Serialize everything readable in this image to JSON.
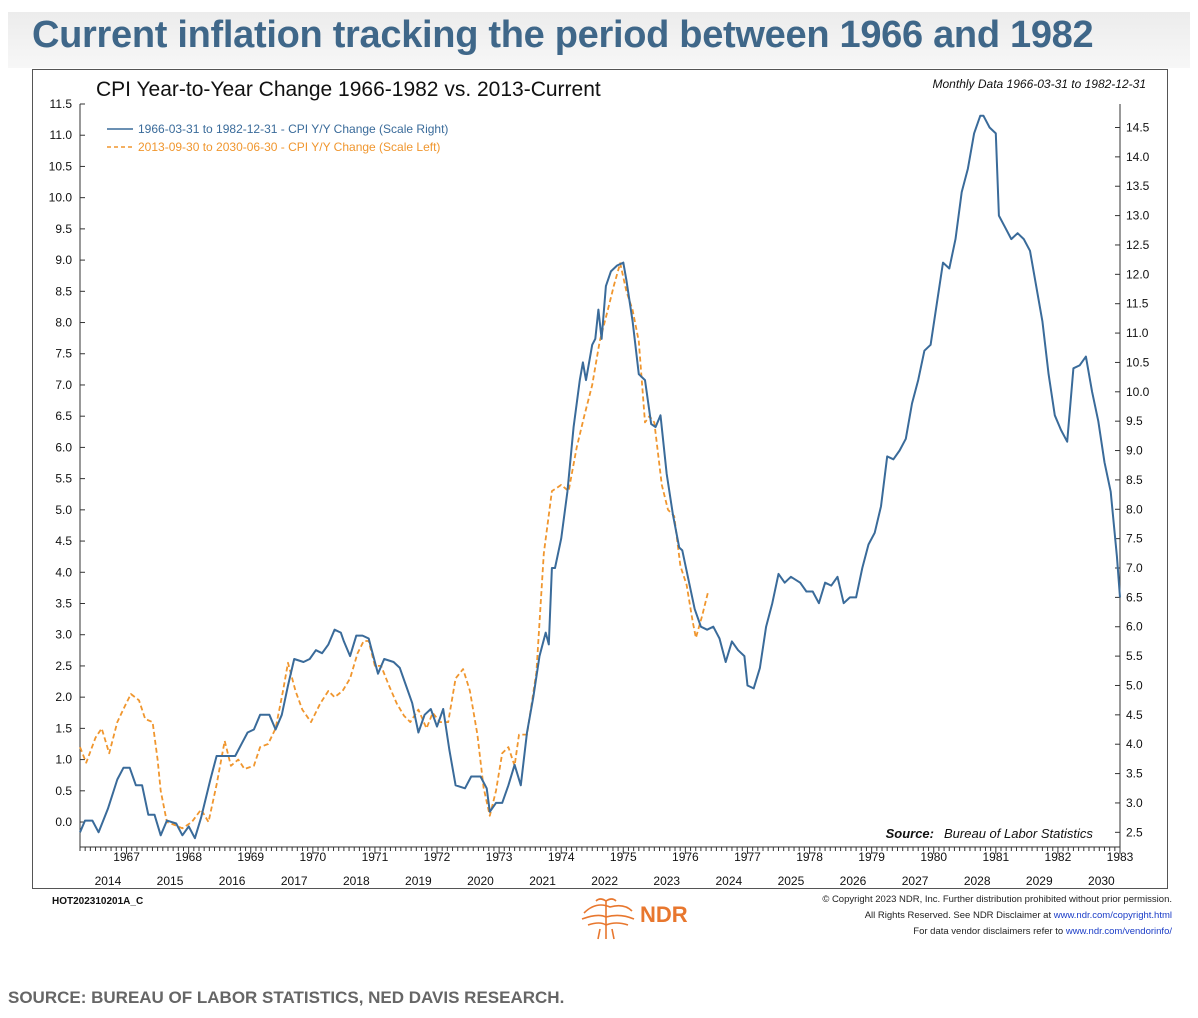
{
  "page": {
    "headline": "Current inflation tracking the period between 1966 and 1982",
    "source_caption": "SOURCE: BUREAU OF LABOR STATISTICS, NED DAVIS RESEARCH.",
    "chart_code": "HOT202310201A_C",
    "logo_text": "NDR",
    "copyright_line1": "© Copyright 2023 NDR, Inc. Further distribution prohibited without prior permission.",
    "copyright_line2_text": "All Rights Reserved. See NDR Disclaimer at ",
    "copyright_line2_link": "www.ndr.com/copyright.html",
    "copyright_line3_text": "For data vendor disclaimers refer to ",
    "copyright_line3_link": "www.ndr.com/vendorinfo/"
  },
  "chart_data": {
    "type": "line",
    "title": "CPI Year-to-Year Change 1966-1982 vs. 2013-Current",
    "note": "Monthly Data 1966-03-31 to 1982-12-31",
    "source_label": "Source:",
    "source_text": "Bureau of Labor Statistics",
    "legend_position": "top-left",
    "grid": false,
    "left_axis": {
      "min": -0.4,
      "max": 11.5,
      "ticks": [
        "0.0",
        "0.5",
        "1.0",
        "1.5",
        "2.0",
        "2.5",
        "3.0",
        "3.5",
        "4.0",
        "4.5",
        "5.0",
        "5.5",
        "6.0",
        "6.5",
        "7.0",
        "7.5",
        "8.0",
        "8.5",
        "9.0",
        "9.5",
        "10.0",
        "10.5",
        "11.0",
        "11.5"
      ]
    },
    "right_axis": {
      "min": 2.25,
      "max": 14.9,
      "ticks": [
        "2.5",
        "3.0",
        "3.5",
        "4.0",
        "4.5",
        "5.0",
        "5.5",
        "6.0",
        "6.5",
        "7.0",
        "7.5",
        "8.0",
        "8.5",
        "9.0",
        "9.5",
        "10.0",
        "10.5",
        "11.0",
        "11.5",
        "12.0",
        "12.5",
        "13.0",
        "13.5",
        "14.0",
        "14.5"
      ]
    },
    "top_axis": {
      "labels": [
        "1967",
        "1968",
        "1969",
        "1970",
        "1971",
        "1972",
        "1973",
        "1974",
        "1975",
        "1976",
        "1977",
        "1978",
        "1979",
        "1980",
        "1981",
        "1982",
        "1983"
      ],
      "first": 1967,
      "start": 1966.25,
      "end": 1983.0
    },
    "bottom_axis": {
      "labels": [
        "2014",
        "2015",
        "2016",
        "2017",
        "2018",
        "2019",
        "2020",
        "2021",
        "2022",
        "2023",
        "2024",
        "2025",
        "2026",
        "2027",
        "2028",
        "2029",
        "2030"
      ],
      "first": 2014
    },
    "series": [
      {
        "name": "1966-03-31 to 1982-12-31 - CPI Y/Y Change (Scale Right)",
        "axis": "right",
        "color": "#3a6b9a",
        "style": "solid",
        "points": [
          [
            1966.25,
            2.5
          ],
          [
            1966.33,
            2.7
          ],
          [
            1966.45,
            2.7
          ],
          [
            1966.55,
            2.5
          ],
          [
            1966.7,
            2.9
          ],
          [
            1966.85,
            3.4
          ],
          [
            1966.95,
            3.6
          ],
          [
            1967.05,
            3.6
          ],
          [
            1967.15,
            3.3
          ],
          [
            1967.25,
            3.3
          ],
          [
            1967.35,
            2.8
          ],
          [
            1967.45,
            2.8
          ],
          [
            1967.55,
            2.45
          ],
          [
            1967.65,
            2.7
          ],
          [
            1967.8,
            2.65
          ],
          [
            1967.9,
            2.45
          ],
          [
            1968.0,
            2.6
          ],
          [
            1968.1,
            2.4
          ],
          [
            1968.2,
            2.75
          ],
          [
            1968.35,
            3.4
          ],
          [
            1968.45,
            3.8
          ],
          [
            1968.6,
            3.8
          ],
          [
            1968.75,
            3.8
          ],
          [
            1968.85,
            4.0
          ],
          [
            1968.95,
            4.2
          ],
          [
            1969.05,
            4.25
          ],
          [
            1969.15,
            4.5
          ],
          [
            1969.3,
            4.5
          ],
          [
            1969.4,
            4.25
          ],
          [
            1969.5,
            4.5
          ],
          [
            1969.6,
            5.0
          ],
          [
            1969.7,
            5.45
          ],
          [
            1969.85,
            5.4
          ],
          [
            1969.95,
            5.45
          ],
          [
            1970.05,
            5.6
          ],
          [
            1970.15,
            5.55
          ],
          [
            1970.25,
            5.7
          ],
          [
            1970.35,
            5.95
          ],
          [
            1970.45,
            5.9
          ],
          [
            1970.5,
            5.75
          ],
          [
            1970.6,
            5.5
          ],
          [
            1970.7,
            5.85
          ],
          [
            1970.8,
            5.85
          ],
          [
            1970.9,
            5.8
          ],
          [
            1970.95,
            5.6
          ],
          [
            1971.05,
            5.2
          ],
          [
            1971.15,
            5.45
          ],
          [
            1971.3,
            5.4
          ],
          [
            1971.4,
            5.3
          ],
          [
            1971.5,
            5.0
          ],
          [
            1971.6,
            4.7
          ],
          [
            1971.7,
            4.2
          ],
          [
            1971.8,
            4.5
          ],
          [
            1971.9,
            4.6
          ],
          [
            1972.0,
            4.3
          ],
          [
            1972.1,
            4.6
          ],
          [
            1972.2,
            3.9
          ],
          [
            1972.3,
            3.3
          ],
          [
            1972.45,
            3.25
          ],
          [
            1972.55,
            3.45
          ],
          [
            1972.7,
            3.45
          ],
          [
            1972.8,
            3.25
          ],
          [
            1972.85,
            2.85
          ],
          [
            1972.95,
            3.0
          ],
          [
            1973.05,
            3.0
          ],
          [
            1973.15,
            3.3
          ],
          [
            1973.25,
            3.65
          ],
          [
            1973.35,
            3.3
          ],
          [
            1973.45,
            4.2
          ],
          [
            1973.55,
            4.8
          ],
          [
            1973.65,
            5.5
          ],
          [
            1973.75,
            5.9
          ],
          [
            1973.8,
            5.7
          ],
          [
            1973.85,
            7.0
          ],
          [
            1973.9,
            7.0
          ],
          [
            1974.0,
            7.5
          ],
          [
            1974.1,
            8.3
          ],
          [
            1974.2,
            9.4
          ],
          [
            1974.3,
            10.2
          ],
          [
            1974.35,
            10.5
          ],
          [
            1974.4,
            10.2
          ],
          [
            1974.5,
            10.8
          ],
          [
            1974.55,
            10.9
          ],
          [
            1974.6,
            11.4
          ],
          [
            1974.65,
            10.9
          ],
          [
            1974.72,
            11.8
          ],
          [
            1974.8,
            12.05
          ],
          [
            1974.9,
            12.15
          ],
          [
            1975.0,
            12.2
          ],
          [
            1975.05,
            11.9
          ],
          [
            1975.15,
            11.2
          ],
          [
            1975.25,
            10.3
          ],
          [
            1975.35,
            10.2
          ],
          [
            1975.45,
            9.45
          ],
          [
            1975.52,
            9.4
          ],
          [
            1975.6,
            9.6
          ],
          [
            1975.7,
            8.6
          ],
          [
            1975.8,
            7.9
          ],
          [
            1975.9,
            7.35
          ],
          [
            1975.95,
            7.3
          ],
          [
            1976.05,
            6.8
          ],
          [
            1976.15,
            6.3
          ],
          [
            1976.25,
            6.0
          ],
          [
            1976.35,
            5.95
          ],
          [
            1976.45,
            6.0
          ],
          [
            1976.55,
            5.8
          ],
          [
            1976.65,
            5.4
          ],
          [
            1976.75,
            5.75
          ],
          [
            1976.85,
            5.6
          ],
          [
            1976.95,
            5.5
          ],
          [
            1977.0,
            5.0
          ],
          [
            1977.1,
            4.95
          ],
          [
            1977.2,
            5.3
          ],
          [
            1977.3,
            6.0
          ],
          [
            1977.4,
            6.4
          ],
          [
            1977.5,
            6.9
          ],
          [
            1977.6,
            6.75
          ],
          [
            1977.7,
            6.85
          ],
          [
            1977.85,
            6.75
          ],
          [
            1977.95,
            6.6
          ],
          [
            1978.05,
            6.6
          ],
          [
            1978.15,
            6.4
          ],
          [
            1978.25,
            6.75
          ],
          [
            1978.35,
            6.7
          ],
          [
            1978.45,
            6.85
          ],
          [
            1978.55,
            6.4
          ],
          [
            1978.65,
            6.5
          ],
          [
            1978.75,
            6.5
          ],
          [
            1978.85,
            7.0
          ],
          [
            1978.95,
            7.4
          ],
          [
            1979.05,
            7.6
          ],
          [
            1979.15,
            8.05
          ],
          [
            1979.25,
            8.9
          ],
          [
            1979.35,
            8.85
          ],
          [
            1979.45,
            9.0
          ],
          [
            1979.55,
            9.2
          ],
          [
            1979.65,
            9.8
          ],
          [
            1979.75,
            10.2
          ],
          [
            1979.85,
            10.7
          ],
          [
            1979.95,
            10.8
          ],
          [
            1980.05,
            11.5
          ],
          [
            1980.15,
            12.2
          ],
          [
            1980.25,
            12.1
          ],
          [
            1980.35,
            12.6
          ],
          [
            1980.45,
            13.4
          ],
          [
            1980.55,
            13.8
          ],
          [
            1980.65,
            14.4
          ],
          [
            1980.75,
            14.7
          ],
          [
            1980.8,
            14.7
          ],
          [
            1980.9,
            14.5
          ],
          [
            1981.0,
            14.4
          ],
          [
            1981.05,
            13.0
          ],
          [
            1981.15,
            12.8
          ],
          [
            1981.25,
            12.6
          ],
          [
            1981.35,
            12.7
          ],
          [
            1981.45,
            12.6
          ],
          [
            1981.55,
            12.4
          ],
          [
            1981.65,
            11.8
          ],
          [
            1981.75,
            11.2
          ],
          [
            1981.85,
            10.3
          ],
          [
            1981.95,
            9.6
          ],
          [
            1982.05,
            9.35
          ],
          [
            1982.15,
            9.15
          ],
          [
            1982.25,
            10.4
          ],
          [
            1982.35,
            10.45
          ],
          [
            1982.45,
            10.6
          ],
          [
            1982.55,
            10.0
          ],
          [
            1982.65,
            9.5
          ],
          [
            1982.75,
            8.8
          ],
          [
            1982.85,
            8.3
          ],
          [
            1982.95,
            7.2
          ],
          [
            1983.0,
            6.5
          ]
        ]
      },
      {
        "name": "2013-09-30 to 2030-06-30 - CPI Y/Y Change (Scale Left)",
        "axis": "left",
        "color": "#f0962e",
        "style": "dashed",
        "points": [
          [
            1966.25,
            1.2
          ],
          [
            1966.35,
            0.95
          ],
          [
            1966.5,
            1.35
          ],
          [
            1966.6,
            1.5
          ],
          [
            1966.72,
            1.1
          ],
          [
            1966.85,
            1.6
          ],
          [
            1966.97,
            1.85
          ],
          [
            1967.07,
            2.05
          ],
          [
            1967.2,
            1.95
          ],
          [
            1967.3,
            1.65
          ],
          [
            1967.42,
            1.6
          ],
          [
            1967.5,
            1.0
          ],
          [
            1967.55,
            0.5
          ],
          [
            1967.65,
            0.0
          ],
          [
            1967.78,
            -0.05
          ],
          [
            1967.9,
            -0.1
          ],
          [
            1968.05,
            0.0
          ],
          [
            1968.2,
            0.2
          ],
          [
            1968.32,
            0.0
          ],
          [
            1968.45,
            0.6
          ],
          [
            1968.58,
            1.3
          ],
          [
            1968.68,
            0.9
          ],
          [
            1968.8,
            1.0
          ],
          [
            1968.9,
            0.85
          ],
          [
            1969.05,
            0.9
          ],
          [
            1969.15,
            1.2
          ],
          [
            1969.28,
            1.25
          ],
          [
            1969.4,
            1.5
          ],
          [
            1969.52,
            2.1
          ],
          [
            1969.6,
            2.55
          ],
          [
            1969.72,
            2.1
          ],
          [
            1969.83,
            1.8
          ],
          [
            1969.97,
            1.6
          ],
          [
            1970.12,
            1.9
          ],
          [
            1970.25,
            2.1
          ],
          [
            1970.35,
            2.0
          ],
          [
            1970.48,
            2.1
          ],
          [
            1970.6,
            2.3
          ],
          [
            1970.72,
            2.7
          ],
          [
            1970.82,
            2.9
          ],
          [
            1970.9,
            2.9
          ],
          [
            1971.0,
            2.5
          ],
          [
            1971.1,
            2.5
          ],
          [
            1971.22,
            2.2
          ],
          [
            1971.35,
            1.9
          ],
          [
            1971.47,
            1.7
          ],
          [
            1971.57,
            1.6
          ],
          [
            1971.7,
            1.8
          ],
          [
            1971.83,
            1.5
          ],
          [
            1971.93,
            1.75
          ],
          [
            1972.05,
            1.6
          ],
          [
            1972.18,
            1.6
          ],
          [
            1972.3,
            2.3
          ],
          [
            1972.42,
            2.45
          ],
          [
            1972.53,
            2.1
          ],
          [
            1972.65,
            1.4
          ],
          [
            1972.75,
            0.55
          ],
          [
            1972.85,
            0.1
          ],
          [
            1972.95,
            0.5
          ],
          [
            1973.05,
            1.1
          ],
          [
            1973.15,
            1.2
          ],
          [
            1973.25,
            0.9
          ],
          [
            1973.32,
            1.4
          ],
          [
            1973.45,
            1.4
          ],
          [
            1973.6,
            2.4
          ],
          [
            1973.72,
            4.3
          ],
          [
            1973.85,
            5.3
          ],
          [
            1974.0,
            5.4
          ],
          [
            1974.12,
            5.3
          ],
          [
            1974.25,
            6.0
          ],
          [
            1974.37,
            6.5
          ],
          [
            1974.5,
            7.0
          ],
          [
            1974.62,
            7.7
          ],
          [
            1974.75,
            8.2
          ],
          [
            1974.85,
            8.6
          ],
          [
            1974.95,
            8.95
          ],
          [
            1975.05,
            8.5
          ],
          [
            1975.15,
            8.2
          ],
          [
            1975.25,
            7.7
          ],
          [
            1975.35,
            6.4
          ],
          [
            1975.42,
            6.5
          ],
          [
            1975.5,
            6.4
          ],
          [
            1975.62,
            5.4
          ],
          [
            1975.72,
            5.0
          ],
          [
            1975.82,
            4.9
          ],
          [
            1975.92,
            4.1
          ],
          [
            1976.02,
            3.8
          ],
          [
            1976.12,
            3.2
          ],
          [
            1976.17,
            2.95
          ],
          [
            1976.27,
            3.3
          ],
          [
            1976.37,
            3.7
          ]
        ]
      }
    ]
  }
}
